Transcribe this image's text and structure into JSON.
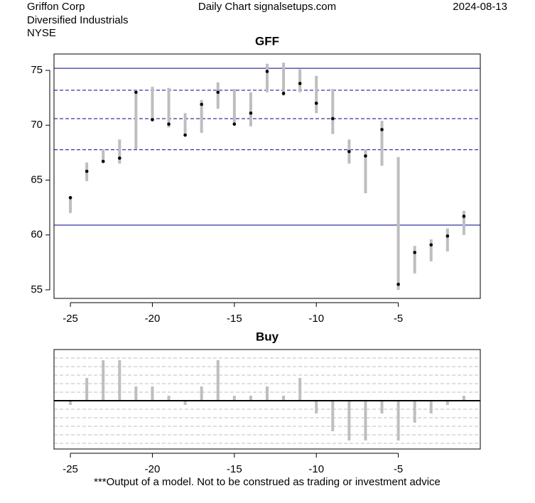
{
  "header": {
    "company": "Griffon Corp",
    "sector": "Diversified Industrials",
    "exchange": "NYSE",
    "source": "Daily Chart signalsetups.com",
    "date": "2024-08-13"
  },
  "footer": "***Output of a model. Not to be construed as trading or investment advice",
  "chart_data": [
    {
      "type": "range",
      "title": "GFF",
      "x": [
        -25,
        -24,
        -23,
        -22,
        -21,
        -20,
        -19,
        -18,
        -17,
        -16,
        -15,
        -14,
        -13,
        -12,
        -11,
        -10,
        -9,
        -8,
        -7,
        -6,
        -5,
        -4,
        -3,
        -2,
        -1
      ],
      "high": [
        63.5,
        66.6,
        67.8,
        68.7,
        73.2,
        73.5,
        73.4,
        71.1,
        72.3,
        73.9,
        73.3,
        73.0,
        75.6,
        75.7,
        75.1,
        74.5,
        73.3,
        68.7,
        67.8,
        70.4,
        67.1,
        59.0,
        59.6,
        60.6,
        62.2
      ],
      "low": [
        62.0,
        64.9,
        66.6,
        66.5,
        67.8,
        70.4,
        69.8,
        69.0,
        69.3,
        71.5,
        70.0,
        69.9,
        73.0,
        72.7,
        73.0,
        71.1,
        69.2,
        66.5,
        63.8,
        66.3,
        55.0,
        56.5,
        57.6,
        58.5,
        60.0
      ],
      "close": [
        63.4,
        65.8,
        66.7,
        67.0,
        73.0,
        70.5,
        70.1,
        69.1,
        71.9,
        73.0,
        70.1,
        71.1,
        74.9,
        72.9,
        73.8,
        72.0,
        70.6,
        67.6,
        67.2,
        69.6,
        55.5,
        58.4,
        59.1,
        59.9,
        61.7
      ],
      "color": "#bebebe",
      "close_color": "#000000",
      "hlines_solid": [
        75.19,
        60.9
      ],
      "hlines_dashed": [
        73.19,
        70.6,
        67.77
      ],
      "hline_color": "#00008b",
      "xlim": [
        -26,
        0
      ],
      "ylim": [
        54.22,
        76.49
      ],
      "xticks": [
        -25,
        -20,
        -15,
        -10,
        -5
      ],
      "yticks": [
        55,
        60,
        65,
        70,
        75
      ]
    },
    {
      "type": "bar",
      "title": "Buy",
      "x": [
        -25,
        -24,
        -23,
        -22,
        -21,
        -20,
        -19,
        -18,
        -17,
        -16,
        -15,
        -14,
        -13,
        -12,
        -11,
        -10,
        -9,
        -8,
        -7,
        -6,
        -5,
        -4,
        -3,
        -2,
        -1
      ],
      "values": [
        -0.5,
        2.67,
        4.75,
        4.75,
        1.67,
        1.67,
        0.58,
        -0.5,
        1.67,
        4.75,
        0.58,
        0.58,
        1.67,
        0.58,
        2.67,
        -1.5,
        -3.58,
        -4.67,
        -4.67,
        -1.5,
        -4.67,
        -2.58,
        -1.5,
        -0.5,
        0.58
      ],
      "color": "#bebebe",
      "hlines_dashed": [
        -5,
        -4,
        -3,
        -2,
        -1,
        1,
        2,
        3,
        4,
        5
      ],
      "hline_color": "#bfbfbf",
      "xlim": [
        -26,
        0
      ],
      "ylim": [
        -5.67,
        6
      ],
      "xticks": [
        -25,
        -20,
        -15,
        -10,
        -5
      ]
    }
  ]
}
